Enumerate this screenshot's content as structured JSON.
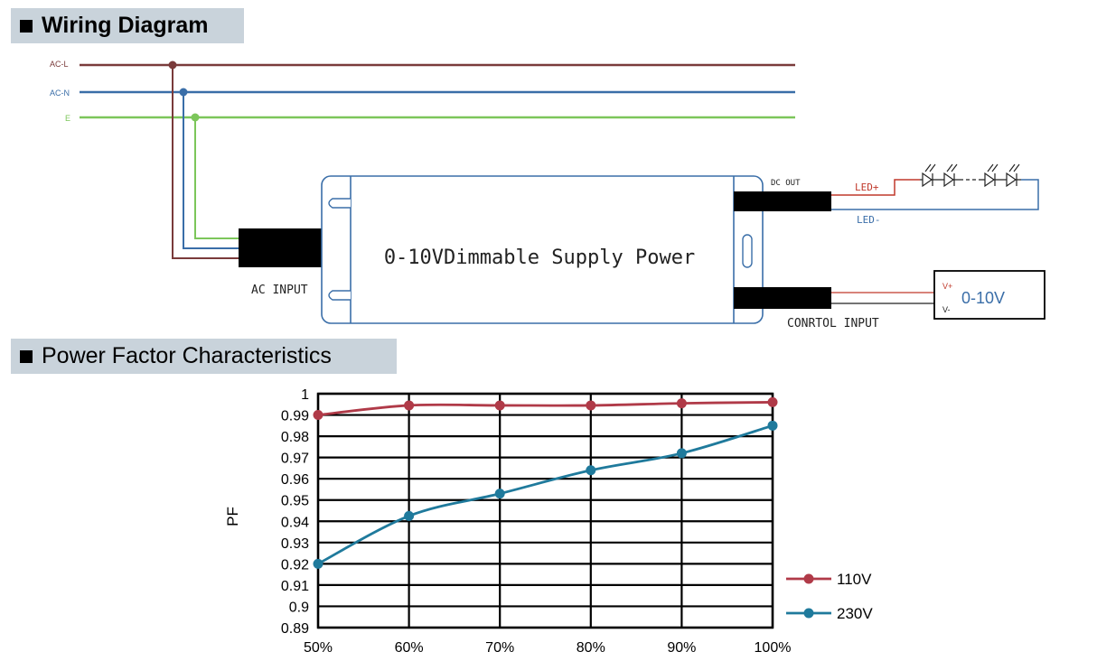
{
  "sections": {
    "wiring_title": "Wiring Diagram",
    "pf_title": "Power Factor Characteristics"
  },
  "wiring": {
    "lines": {
      "ac_l": "AC-L",
      "ac_n": "AC-N",
      "earth": "E"
    },
    "driver_label": "0-10VDimmable Supply Power",
    "ac_input_label": "AC INPUT",
    "dc_out_label": "DC OUT",
    "led_plus": "LED+",
    "led_minus": "LED-",
    "control_input_label": "CONRTOL INPUT",
    "dimmer": {
      "label": "0-10V",
      "v_plus": "V+",
      "v_minus": "V-"
    },
    "colors": {
      "ac_l": "#7a3b3b",
      "ac_n": "#3a6ea8",
      "earth": "#7cc65a",
      "led_plus": "#c0392b",
      "led_minus": "#3a6ea8"
    },
    "icons": [
      "led-icon",
      "led-icon",
      "led-icon",
      "led-icon"
    ]
  },
  "chart_data": {
    "type": "line",
    "title": "",
    "xlabel": "",
    "ylabel": "PF",
    "categories": [
      "50%",
      "60%",
      "70%",
      "80%",
      "90%",
      "100%"
    ],
    "ylim": [
      0.89,
      1.0
    ],
    "yticks": [
      "0.89",
      "0.9",
      "0.91",
      "0.92",
      "0.93",
      "0.94",
      "0.95",
      "0.96",
      "0.97",
      "0.98",
      "0.99",
      "1"
    ],
    "grid": true,
    "legend_position": "bottom-right",
    "series": [
      {
        "name": "110V",
        "color": "#b03a48",
        "values": [
          0.99,
          0.9945,
          0.9945,
          0.9945,
          0.9955,
          0.996
        ]
      },
      {
        "name": "230V",
        "color": "#1f7a9c",
        "values": [
          0.92,
          0.9425,
          0.953,
          0.964,
          0.972,
          0.985
        ]
      }
    ]
  }
}
